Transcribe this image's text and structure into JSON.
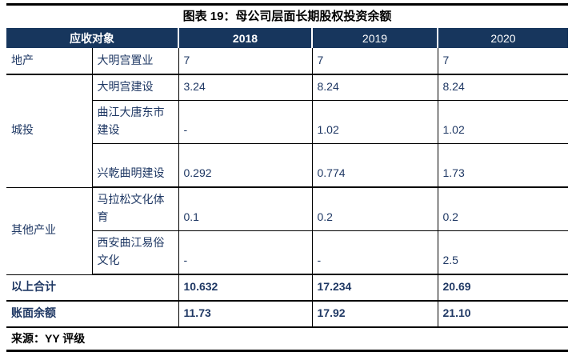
{
  "title": "图表 19：母公司层面长期股权投资余额",
  "colors": {
    "header_bg": "#17365D",
    "text_navy": "#1F3864",
    "rule_black": "#000000"
  },
  "table": {
    "header": {
      "receivable_label": "应收对象",
      "year_2018": "2018",
      "year_2019": "2019",
      "year_2020": "2020"
    },
    "rows": [
      {
        "category": "地产",
        "name": "大明宫置业",
        "v2018": "7",
        "v2019": "7",
        "v2020": "7"
      },
      {
        "category": "城投",
        "name": "大明宫建设",
        "v2018": "3.24",
        "v2019": "8.24",
        "v2020": "8.24"
      },
      {
        "category": "",
        "name": "曲江大唐东市建设",
        "v2018": "-",
        "v2019": "1.02",
        "v2020": "1.02"
      },
      {
        "category": "",
        "name": "兴乾曲明建设",
        "v2018": "0.292",
        "v2019": "0.774",
        "v2020": "1.73"
      },
      {
        "category": "其他产业",
        "name": "马拉松文化体育",
        "v2018": "0.1",
        "v2019": "0.2",
        "v2020": "0.2"
      },
      {
        "category": "",
        "name": "西安曲江易俗文化",
        "v2018": "-",
        "v2019": "-",
        "v2020": "2.5"
      }
    ],
    "totals": [
      {
        "label": "以上合计",
        "v2018": "10.632",
        "v2019": "17.234",
        "v2020": "20.69"
      },
      {
        "label": "账面余额",
        "v2018": "11.73",
        "v2019": "17.92",
        "v2020": "21.10"
      }
    ]
  },
  "source": "来源：YY 评级"
}
